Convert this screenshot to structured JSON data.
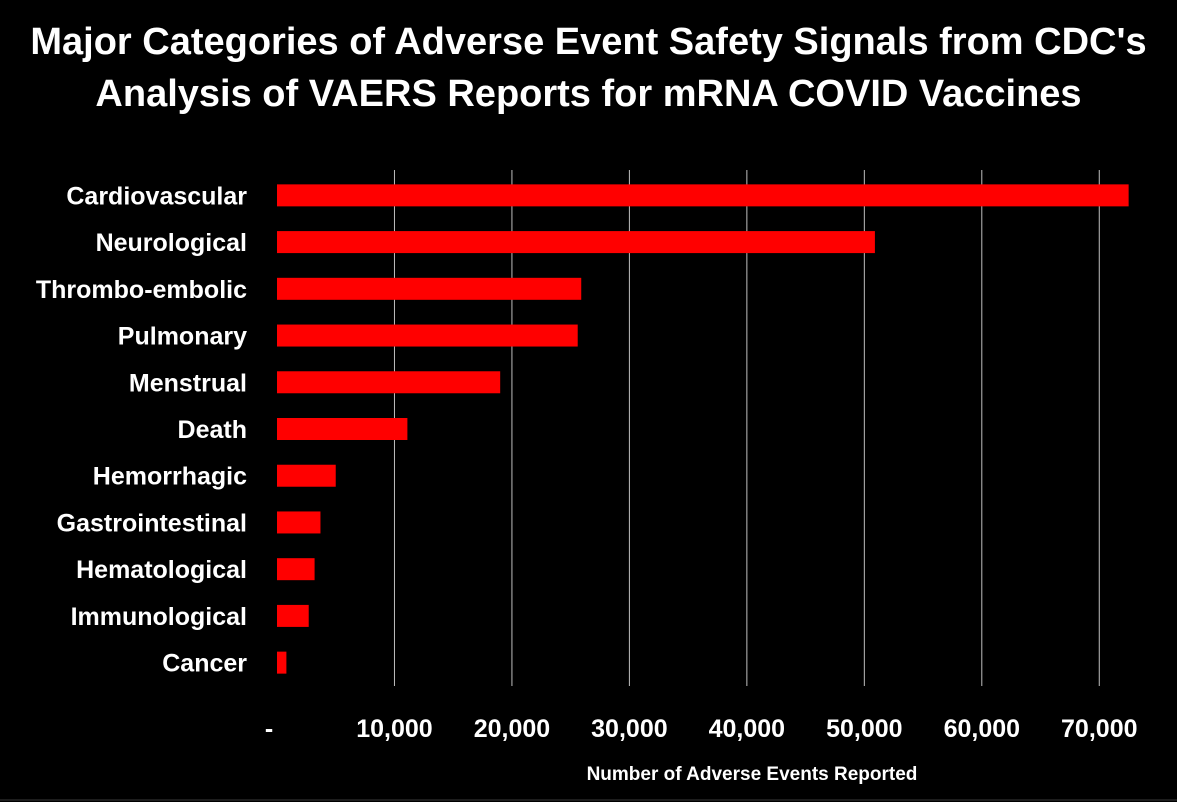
{
  "chart_data": {
    "type": "bar",
    "orientation": "horizontal",
    "title_lines": [
      "Major Categories of Adverse Event Safety Signals from CDC's",
      "Analysis of VAERS Reports for mRNA COVID Vaccines"
    ],
    "xlabel": "Number of Adverse Events Reported",
    "ylabel": "",
    "categories": [
      "Cardiovascular",
      "Neurological",
      "Thrombo-embolic",
      "Pulmonary",
      "Menstrual",
      "Death",
      "Hemorrhagic",
      "Gastrointestinal",
      "Hematological",
      "Immunological",
      "Cancer"
    ],
    "values": [
      72500,
      50900,
      25900,
      25600,
      19000,
      11100,
      5000,
      3700,
      3200,
      2700,
      800
    ],
    "xlim": [
      0,
      75000
    ],
    "xticks": [
      0,
      10000,
      20000,
      30000,
      40000,
      50000,
      60000,
      70000
    ],
    "xtick_labels": [
      "-",
      "10,000",
      "20,000",
      "30,000",
      "40,000",
      "50,000",
      "60,000",
      "70,000"
    ],
    "grid": "vertical",
    "bar_color": "#ff0000",
    "background": "#000000",
    "text_color": "#ffffff",
    "gridline_color": "#bfbfbf"
  }
}
